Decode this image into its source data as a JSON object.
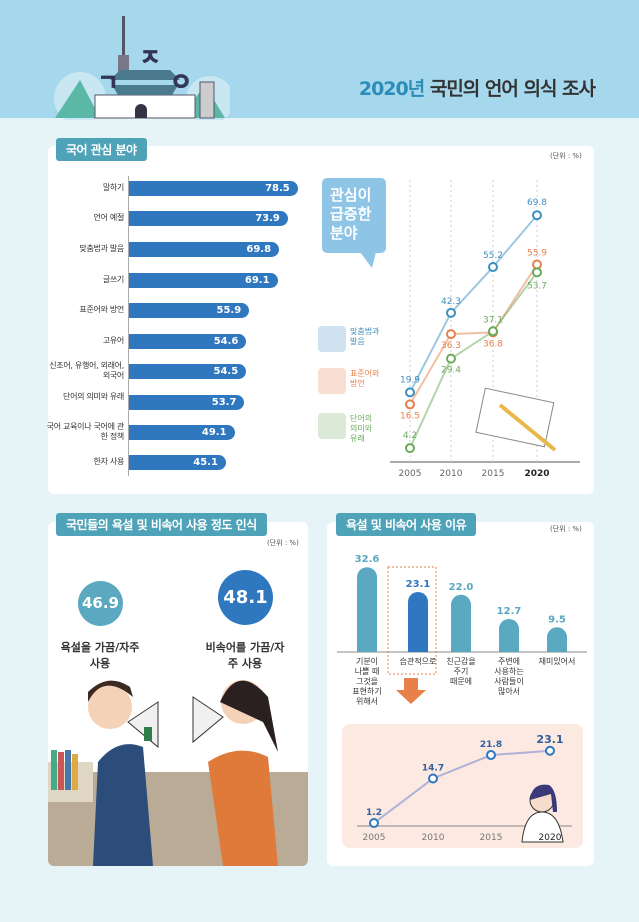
{
  "header": {
    "title_year": "2020년",
    "title_rest": " 국민의 언어 의식 조사"
  },
  "colors": {
    "header_bg": "#a5d8ec",
    "bar_blue": "#2f77bf",
    "teal": "#5aa9c0",
    "orange": "#e8804a",
    "green": "#6aaa5a",
    "line_blue": "#3d8fc0"
  },
  "chart_data": [
    {
      "type": "bar",
      "orientation": "horizontal",
      "title": "국어 관심 분야",
      "unit": "(단위 : %)",
      "categories": [
        "말하기",
        "언어 예절",
        "맞춤법과 발음",
        "글쓰기",
        "표준어와 방언",
        "고유어",
        "신조어, 유행어, 외래어, 외국어",
        "단어의 의미와 유래",
        "국어 교육이나 국어에 관한 정책",
        "한자 사용"
      ],
      "values": [
        78.5,
        73.9,
        69.8,
        69.1,
        55.9,
        54.6,
        54.5,
        53.7,
        49.1,
        45.1
      ]
    },
    {
      "type": "line",
      "title": "관심이 급증한 분야",
      "x": [
        "2005",
        "2010",
        "2015",
        "2020"
      ],
      "series": [
        {
          "name": "맞춤법과 발음",
          "values": [
            19.9,
            42.3,
            55.2,
            69.8
          ]
        },
        {
          "name": "표준어와 방언",
          "values": [
            16.5,
            36.3,
            36.8,
            55.9
          ]
        },
        {
          "name": "단어의 의미와 유래",
          "values": [
            4.2,
            29.4,
            37.1,
            53.7
          ]
        }
      ]
    },
    {
      "type": "bar",
      "title": "국민들의 욕설 및 비속어 사용 정도 인식",
      "unit": "(단위 : %)",
      "categories": [
        "욕설을 가끔/자주 사용",
        "비속어를 가끔/자주 사용"
      ],
      "values": [
        46.9,
        48.1
      ]
    },
    {
      "type": "bar",
      "title": "욕설 및 비속어 사용 이유",
      "unit": "(단위 : %)",
      "categories": [
        "기분이 나쁠 때 그것을 표현하기 위해서",
        "습관적으로",
        "친근감을 주기 때문에",
        "주변에 사용하는 사람들이 많아서",
        "재미있어서"
      ],
      "values": [
        32.6,
        23.1,
        22.0,
        12.7,
        9.5
      ],
      "highlight": "습관적으로"
    },
    {
      "type": "line",
      "title": "습관적으로",
      "x": [
        "2005",
        "2010",
        "2015",
        "2020"
      ],
      "values": [
        1.2,
        14.7,
        21.8,
        23.1
      ]
    }
  ]
}
